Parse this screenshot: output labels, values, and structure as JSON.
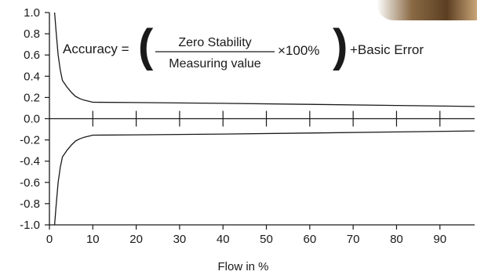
{
  "chart_data": {
    "type": "line",
    "title": "",
    "xlabel": "Flow in %",
    "ylabel": "",
    "xlim": [
      0,
      98
    ],
    "ylim": [
      -1.0,
      1.0
    ],
    "x_ticks": [
      0,
      10,
      20,
      30,
      40,
      50,
      60,
      70,
      80,
      90
    ],
    "x_tick_labels": [
      "0",
      "10",
      "20",
      "30",
      "40",
      "50",
      "60",
      "70",
      "80",
      "90"
    ],
    "y_ticks": [
      1.0,
      0.8,
      0.6,
      0.4,
      0.2,
      0.0,
      -0.2,
      -0.4,
      -0.6,
      -0.8,
      -1.0
    ],
    "y_tick_labels": [
      "1.0",
      "0.8",
      "0.6",
      "0.4",
      "0.2",
      "0.0",
      "-0.2",
      "-0.4",
      "-0.6",
      "-0.8",
      "-1.0"
    ],
    "grid": false,
    "series": [
      {
        "x": [
          1.2,
          1.5,
          2,
          2.5,
          3,
          4,
          5,
          6,
          7,
          8,
          9,
          10,
          20,
          40,
          60,
          80,
          98
        ],
        "y": [
          1.0,
          0.84,
          0.6,
          0.46,
          0.36,
          0.3,
          0.25,
          0.21,
          0.19,
          0.175,
          0.165,
          0.155,
          0.152,
          0.145,
          0.135,
          0.125,
          0.115
        ]
      },
      {
        "x": [
          1.2,
          1.5,
          2,
          2.5,
          3,
          4,
          5,
          6,
          7,
          8,
          9,
          10,
          20,
          40,
          60,
          80,
          98
        ],
        "y": [
          -1.0,
          -0.84,
          -0.6,
          -0.46,
          -0.36,
          -0.3,
          -0.25,
          -0.21,
          -0.19,
          -0.175,
          -0.165,
          -0.155,
          -0.152,
          -0.145,
          -0.135,
          -0.125,
          -0.115
        ]
      }
    ],
    "annotation": {
      "lhs": "Accuracy =",
      "numerator": "Zero Stability",
      "denominator": "Measuring value",
      "multiplier": "×100%",
      "rhs": "+Basic Error"
    }
  },
  "colors": {
    "line": "#1a1a1a",
    "text": "#1a1a1a"
  }
}
